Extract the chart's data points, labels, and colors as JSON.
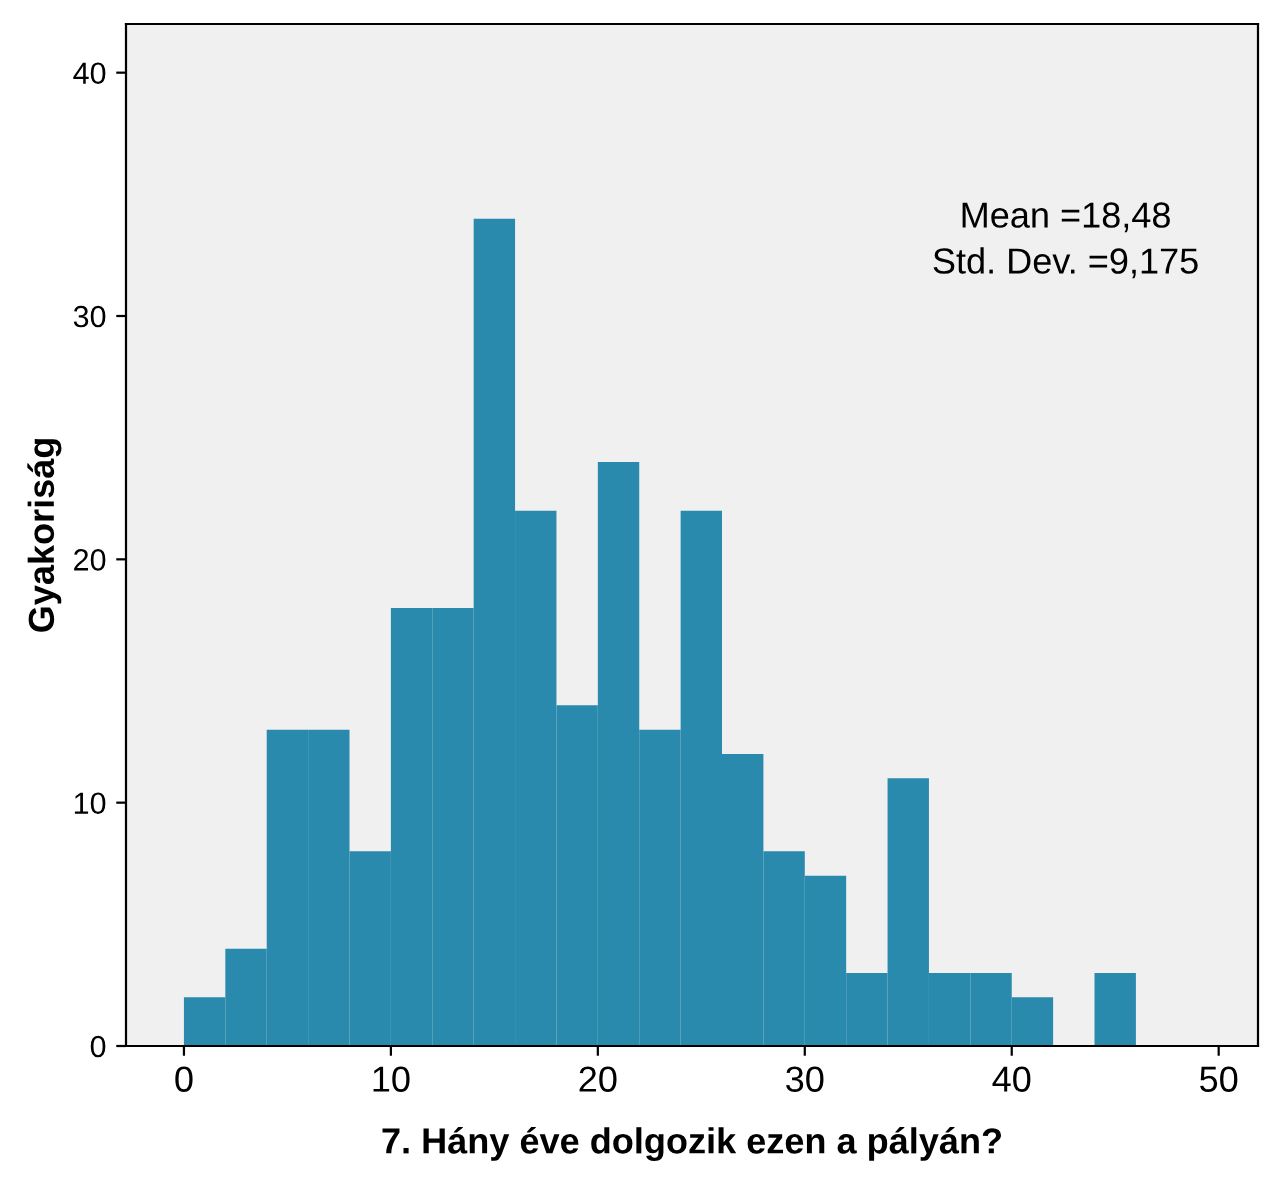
{
  "chart_data": {
    "type": "histogram",
    "xlabel": "7. Hány éve dolgozik ezen a pályán?",
    "ylabel": "Gyakoriság",
    "bins": [
      0,
      2,
      4,
      6,
      8,
      10,
      12,
      14,
      16,
      18,
      20,
      22,
      24,
      26,
      28,
      30,
      32,
      34,
      36,
      38,
      40,
      42,
      44,
      46
    ],
    "values": [
      2,
      4,
      13,
      13,
      8,
      18,
      18,
      34,
      22,
      14,
      24,
      13,
      22,
      12,
      8,
      7,
      3,
      11,
      3,
      3,
      2,
      0,
      3
    ],
    "color": "#2a8aad",
    "xlim": [
      -2.8,
      51.9
    ],
    "ylim": [
      0,
      42
    ],
    "xticks": [
      0,
      10,
      20,
      30,
      40,
      50
    ],
    "yticks": [
      0,
      10,
      20,
      30,
      40
    ],
    "annotations": [
      "Mean =18,48",
      "Std. Dev. =9,175"
    ],
    "grid": false,
    "legend": false
  }
}
